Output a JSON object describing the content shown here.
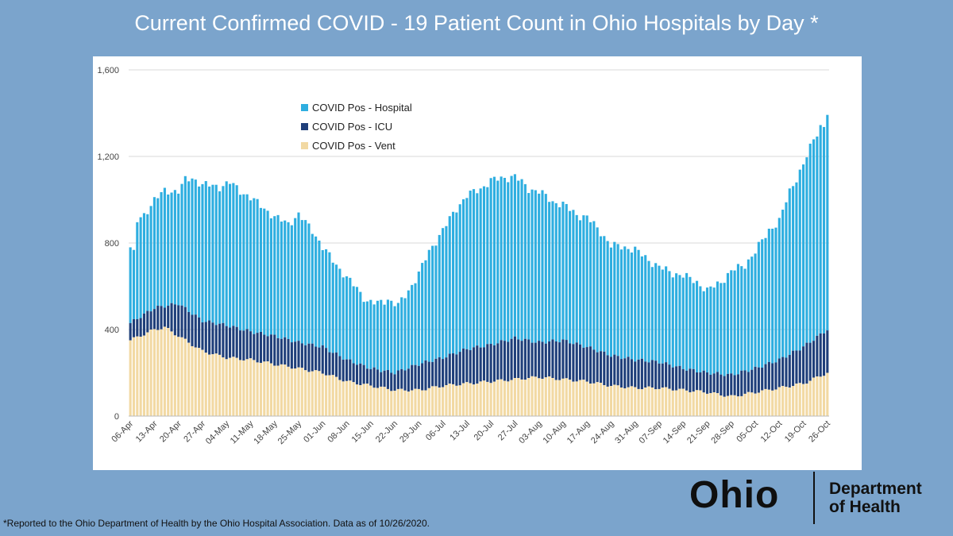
{
  "slide": {
    "title": "Current Confirmed COVID - 19 Patient Count in Ohio Hospitals by Day *",
    "footnote": "*Reported to the Ohio Department of Health by the Ohio Hospital Association. Data as of 10/26/2020."
  },
  "logo": {
    "wordmark": "Ohio",
    "line1": "Department",
    "line2": "of Health"
  },
  "colors": {
    "background": "#7ba4cc",
    "hospital": "#2eaee0",
    "icu": "#1f3f7a",
    "vent": "#f2d9a3"
  },
  "chart_data": {
    "type": "bar",
    "stacked": true,
    "xlabel": "",
    "ylabel": "",
    "ylim": [
      0,
      1600
    ],
    "yticks": [
      "0",
      "400",
      "800",
      "1,200",
      "1,600"
    ],
    "ytick_values": [
      0,
      400,
      800,
      1200,
      1600
    ],
    "grid": "horizontal",
    "legend_position": "upper-left",
    "x_start": "2020-04-06",
    "x_end": "2020-10-26",
    "x_tick_labels": [
      "06-Apr",
      "13-Apr",
      "20-Apr",
      "27-Apr",
      "04-May",
      "11-May",
      "18-May",
      "25-May",
      "01-Jun",
      "08-Jun",
      "15-Jun",
      "22-Jun",
      "29-Jun",
      "06-Jul",
      "13-Jul",
      "20-Jul",
      "27-Jul",
      "03-Aug",
      "10-Aug",
      "17-Aug",
      "24-Aug",
      "31-Aug",
      "07-Sep",
      "14-Sep",
      "21-Sep",
      "28-Sep",
      "05-Oct",
      "12-Oct",
      "19-Oct",
      "26-Oct"
    ],
    "series": [
      {
        "name": "COVID Pos - Hospital",
        "total_key": true
      },
      {
        "name": "COVID Pos - ICU"
      },
      {
        "name": "COVID Pos - Vent"
      }
    ],
    "total_keypoints": [
      [
        "2020-04-06",
        780
      ],
      [
        "2020-04-07",
        750
      ],
      [
        "2020-04-08",
        900
      ],
      [
        "2020-04-10",
        930
      ],
      [
        "2020-04-13",
        1000
      ],
      [
        "2020-04-16",
        1040
      ],
      [
        "2020-04-20",
        1040
      ],
      [
        "2020-04-22",
        1090
      ],
      [
        "2020-04-24",
        1100
      ],
      [
        "2020-04-27",
        1070
      ],
      [
        "2020-05-02",
        1060
      ],
      [
        "2020-05-05",
        1080
      ],
      [
        "2020-05-08",
        1040
      ],
      [
        "2020-05-11",
        1010
      ],
      [
        "2020-05-15",
        960
      ],
      [
        "2020-05-18",
        920
      ],
      [
        "2020-05-22",
        890
      ],
      [
        "2020-05-25",
        930
      ],
      [
        "2020-05-29",
        860
      ],
      [
        "2020-06-01",
        780
      ],
      [
        "2020-06-05",
        700
      ],
      [
        "2020-06-08",
        640
      ],
      [
        "2020-06-11",
        590
      ],
      [
        "2020-06-14",
        530
      ],
      [
        "2020-06-17",
        520
      ],
      [
        "2020-06-20",
        540
      ],
      [
        "2020-06-23",
        510
      ],
      [
        "2020-06-26",
        580
      ],
      [
        "2020-06-29",
        660
      ],
      [
        "2020-07-02",
        760
      ],
      [
        "2020-07-06",
        860
      ],
      [
        "2020-07-10",
        960
      ],
      [
        "2020-07-13",
        1020
      ],
      [
        "2020-07-17",
        1050
      ],
      [
        "2020-07-20",
        1090
      ],
      [
        "2020-07-24",
        1100
      ],
      [
        "2020-07-27",
        1110
      ],
      [
        "2020-07-31",
        1050
      ],
      [
        "2020-08-03",
        1040
      ],
      [
        "2020-08-07",
        990
      ],
      [
        "2020-08-10",
        980
      ],
      [
        "2020-08-14",
        930
      ],
      [
        "2020-08-17",
        920
      ],
      [
        "2020-08-21",
        850
      ],
      [
        "2020-08-24",
        790
      ],
      [
        "2020-08-28",
        780
      ],
      [
        "2020-08-31",
        770
      ],
      [
        "2020-09-04",
        720
      ],
      [
        "2020-09-07",
        690
      ],
      [
        "2020-09-11",
        660
      ],
      [
        "2020-09-14",
        650
      ],
      [
        "2020-09-18",
        620
      ],
      [
        "2020-09-21",
        580
      ],
      [
        "2020-09-25",
        620
      ],
      [
        "2020-09-28",
        670
      ],
      [
        "2020-10-02",
        700
      ],
      [
        "2020-10-05",
        760
      ],
      [
        "2020-10-09",
        860
      ],
      [
        "2020-10-12",
        900
      ],
      [
        "2020-10-15",
        1040
      ],
      [
        "2020-10-19",
        1160
      ],
      [
        "2020-10-22",
        1280
      ],
      [
        "2020-10-24",
        1340
      ],
      [
        "2020-10-25",
        1340
      ],
      [
        "2020-10-26",
        1400
      ]
    ],
    "icu_keypoints": [
      [
        "2020-04-06",
        430
      ],
      [
        "2020-04-13",
        500
      ],
      [
        "2020-04-20",
        520
      ],
      [
        "2020-04-27",
        440
      ],
      [
        "2020-05-04",
        420
      ],
      [
        "2020-05-11",
        390
      ],
      [
        "2020-05-18",
        370
      ],
      [
        "2020-05-25",
        340
      ],
      [
        "2020-06-01",
        320
      ],
      [
        "2020-06-08",
        260
      ],
      [
        "2020-06-15",
        220
      ],
      [
        "2020-06-22",
        200
      ],
      [
        "2020-06-29",
        240
      ],
      [
        "2020-07-06",
        270
      ],
      [
        "2020-07-13",
        310
      ],
      [
        "2020-07-20",
        330
      ],
      [
        "2020-07-27",
        360
      ],
      [
        "2020-08-03",
        340
      ],
      [
        "2020-08-10",
        350
      ],
      [
        "2020-08-17",
        320
      ],
      [
        "2020-08-24",
        280
      ],
      [
        "2020-08-31",
        260
      ],
      [
        "2020-09-07",
        250
      ],
      [
        "2020-09-14",
        220
      ],
      [
        "2020-09-21",
        200
      ],
      [
        "2020-09-28",
        190
      ],
      [
        "2020-10-05",
        220
      ],
      [
        "2020-10-12",
        260
      ],
      [
        "2020-10-19",
        320
      ],
      [
        "2020-10-26",
        400
      ]
    ],
    "vent_keypoints": [
      [
        "2020-04-06",
        350
      ],
      [
        "2020-04-13",
        400
      ],
      [
        "2020-04-16",
        410
      ],
      [
        "2020-04-20",
        370
      ],
      [
        "2020-04-27",
        300
      ],
      [
        "2020-05-04",
        270
      ],
      [
        "2020-05-11",
        260
      ],
      [
        "2020-05-18",
        240
      ],
      [
        "2020-05-25",
        220
      ],
      [
        "2020-06-01",
        200
      ],
      [
        "2020-06-08",
        160
      ],
      [
        "2020-06-15",
        140
      ],
      [
        "2020-06-22",
        120
      ],
      [
        "2020-06-29",
        120
      ],
      [
        "2020-07-06",
        140
      ],
      [
        "2020-07-13",
        150
      ],
      [
        "2020-07-20",
        160
      ],
      [
        "2020-07-27",
        170
      ],
      [
        "2020-08-03",
        180
      ],
      [
        "2020-08-10",
        170
      ],
      [
        "2020-08-17",
        160
      ],
      [
        "2020-08-24",
        140
      ],
      [
        "2020-08-31",
        130
      ],
      [
        "2020-09-07",
        130
      ],
      [
        "2020-09-14",
        120
      ],
      [
        "2020-09-21",
        110
      ],
      [
        "2020-09-28",
        90
      ],
      [
        "2020-10-05",
        110
      ],
      [
        "2020-10-12",
        130
      ],
      [
        "2020-10-19",
        150
      ],
      [
        "2020-10-26",
        200
      ]
    ]
  }
}
